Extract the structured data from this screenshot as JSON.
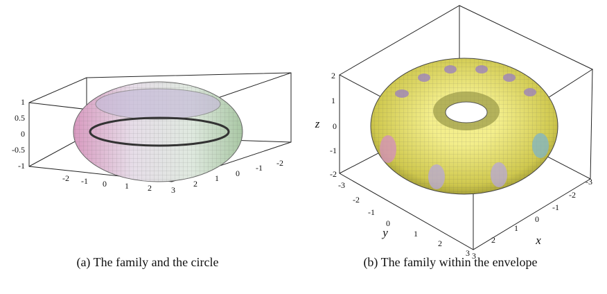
{
  "figures": [
    {
      "caption": "(a) The family and the circle",
      "z_ticks": [
        "1",
        "0.5",
        "0",
        "-0.5",
        "-1"
      ],
      "x_ticks": [
        "-2",
        "-1",
        "0",
        "1",
        "2",
        "3"
      ],
      "y_ticks": [
        "2",
        "1",
        "0",
        "-1",
        "-2"
      ]
    },
    {
      "caption": "(b) The family within the envelope",
      "z_label": "z",
      "z_ticks": [
        "2",
        "1",
        "0",
        "-1",
        "-2"
      ],
      "y_label": "y",
      "y_ticks": [
        "-3",
        "-2",
        "-1",
        "0",
        "1",
        "2",
        "3"
      ],
      "x_label": "x",
      "x_ticks": [
        "3",
        "2",
        "1",
        "0",
        "-1",
        "-2",
        "-3"
      ]
    }
  ]
}
